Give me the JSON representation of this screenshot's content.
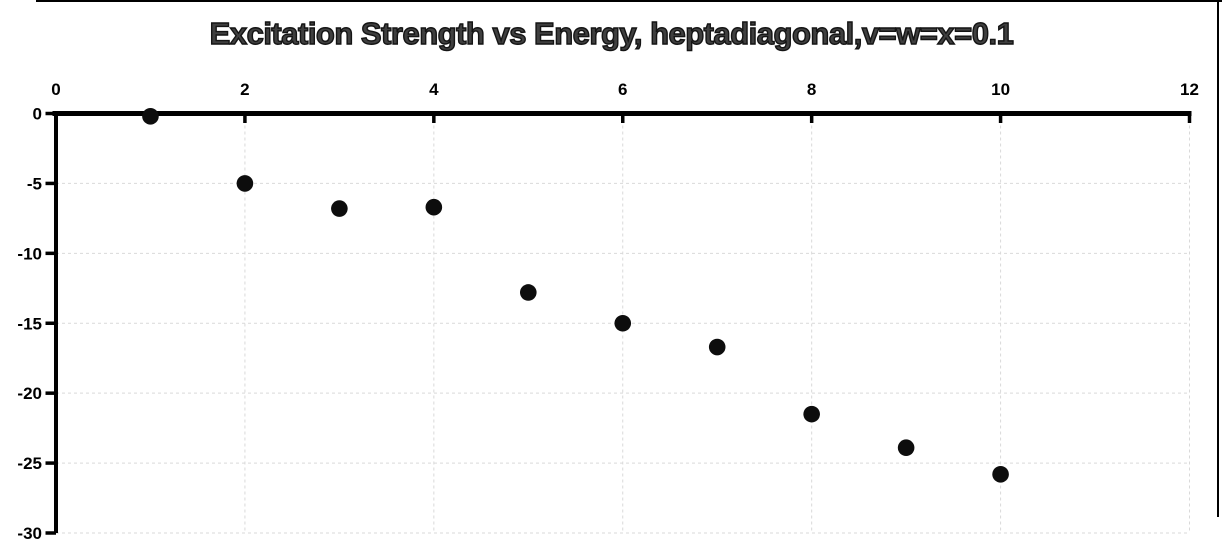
{
  "chart_data": {
    "type": "scatter",
    "title": "Excitation Strength vs Energy, heptadiagonal,v=w=x=0.1",
    "xlabel": "",
    "ylabel": "",
    "x": [
      1,
      2,
      3,
      4,
      5,
      6,
      7,
      8,
      9,
      10
    ],
    "y": [
      -0.2,
      -5.0,
      -6.8,
      -6.7,
      -12.8,
      -15.0,
      -16.7,
      -21.5,
      -23.9,
      -25.8
    ],
    "xlim": [
      0,
      12
    ],
    "ylim": [
      -30,
      0
    ],
    "xticks": [
      0,
      2,
      4,
      6,
      8,
      10,
      12
    ],
    "yticks": [
      0,
      -5,
      -10,
      -15,
      -20,
      -25,
      -30
    ],
    "x_axis_position": "top",
    "grid": "dashed-major",
    "legend": "none",
    "marker": {
      "shape": "circle",
      "radius_px": 8.3,
      "color": "#0d0d0d"
    },
    "colors": {
      "background": "#ffffff",
      "axis": "#000000",
      "gridline": "#d9d9d9",
      "tick_label": "#000000",
      "title_fill": "#3f3f3f",
      "title_outline": "#141414"
    }
  }
}
